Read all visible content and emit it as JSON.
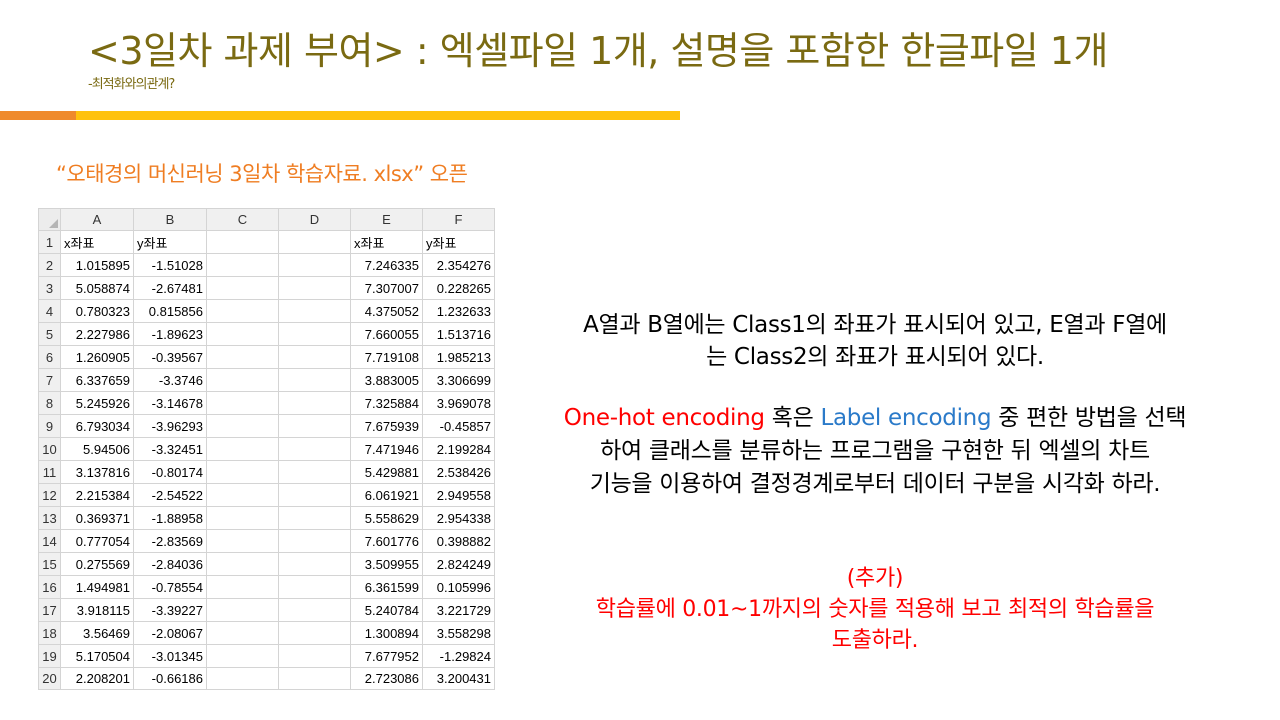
{
  "slide": {
    "title": "<3일차 과제 부여> : 엑셀파일 1개, 설명을 포함한 한글파일 1개",
    "subtitle": "-최적화와의관계?",
    "file_open": "“오태경의 머신러닝 3일차 학습자료. xlsx”  오픈"
  },
  "sheet": {
    "columns": [
      "A",
      "B",
      "C",
      "D",
      "E",
      "F"
    ],
    "header_row": [
      "x좌표",
      "y좌표",
      "",
      "",
      "x좌표",
      "y좌표"
    ],
    "rows": [
      [
        "1.015895",
        "-1.51028",
        "",
        "",
        "7.246335",
        "2.354276"
      ],
      [
        "5.058874",
        "-2.67481",
        "",
        "",
        "7.307007",
        "0.228265"
      ],
      [
        "0.780323",
        "0.815856",
        "",
        "",
        "4.375052",
        "1.232633"
      ],
      [
        "2.227986",
        "-1.89623",
        "",
        "",
        "7.660055",
        "1.513716"
      ],
      [
        "1.260905",
        "-0.39567",
        "",
        "",
        "7.719108",
        "1.985213"
      ],
      [
        "6.337659",
        "-3.3746",
        "",
        "",
        "3.883005",
        "3.306699"
      ],
      [
        "5.245926",
        "-3.14678",
        "",
        "",
        "7.325884",
        "3.969078"
      ],
      [
        "6.793034",
        "-3.96293",
        "",
        "",
        "7.675939",
        "-0.45857"
      ],
      [
        "5.94506",
        "-3.32451",
        "",
        "",
        "7.471946",
        "2.199284"
      ],
      [
        "3.137816",
        "-0.80174",
        "",
        "",
        "5.429881",
        "2.538426"
      ],
      [
        "2.215384",
        "-2.54522",
        "",
        "",
        "6.061921",
        "2.949558"
      ],
      [
        "0.369371",
        "-1.88958",
        "",
        "",
        "5.558629",
        "2.954338"
      ],
      [
        "0.777054",
        "-2.83569",
        "",
        "",
        "7.601776",
        "0.398882"
      ],
      [
        "0.275569",
        "-2.84036",
        "",
        "",
        "3.509955",
        "2.824249"
      ],
      [
        "1.494981",
        "-0.78554",
        "",
        "",
        "6.361599",
        "0.105996"
      ],
      [
        "3.918115",
        "-3.39227",
        "",
        "",
        "5.240784",
        "3.221729"
      ],
      [
        "3.56469",
        "-2.08067",
        "",
        "",
        "1.300894",
        "3.558298"
      ],
      [
        "5.170504",
        "-3.01345",
        "",
        "",
        "7.677952",
        "-1.29824"
      ],
      [
        "2.208201",
        "-0.66186",
        "",
        "",
        "2.723086",
        "3.200431"
      ]
    ]
  },
  "description": {
    "line1": "A열과 B열에는 Class1의 좌표가 표시되어 있고, E열과 F열에",
    "line2": "는 Class2의 좌표가 표시되어 있다."
  },
  "task": {
    "one_hot": "One-hot encoding",
    "or_text": " 혹은 ",
    "label_enc": "Label encoding",
    "rest1": " 중 편한 방법을 선택",
    "line2": "하여 클래스를 분류하는 프로그램을 구현한 뒤 엑셀의 차트",
    "line3": "기능을 이용하여 결정경계로부터 데이터 구분을 시각화 하라."
  },
  "extra": {
    "heading": "(추가)",
    "line1": "학습률에 0.01~1까지의 숫자를 적용해 보고 최적의 학습률을",
    "line2": "도출하라."
  },
  "colors": {
    "title": "#7a6a12",
    "accent_orange": "#ef8a2c",
    "accent_yellow": "#ffc20e",
    "file_text": "#ef7d22",
    "red": "#ff0000",
    "blue": "#2a7ac9"
  }
}
